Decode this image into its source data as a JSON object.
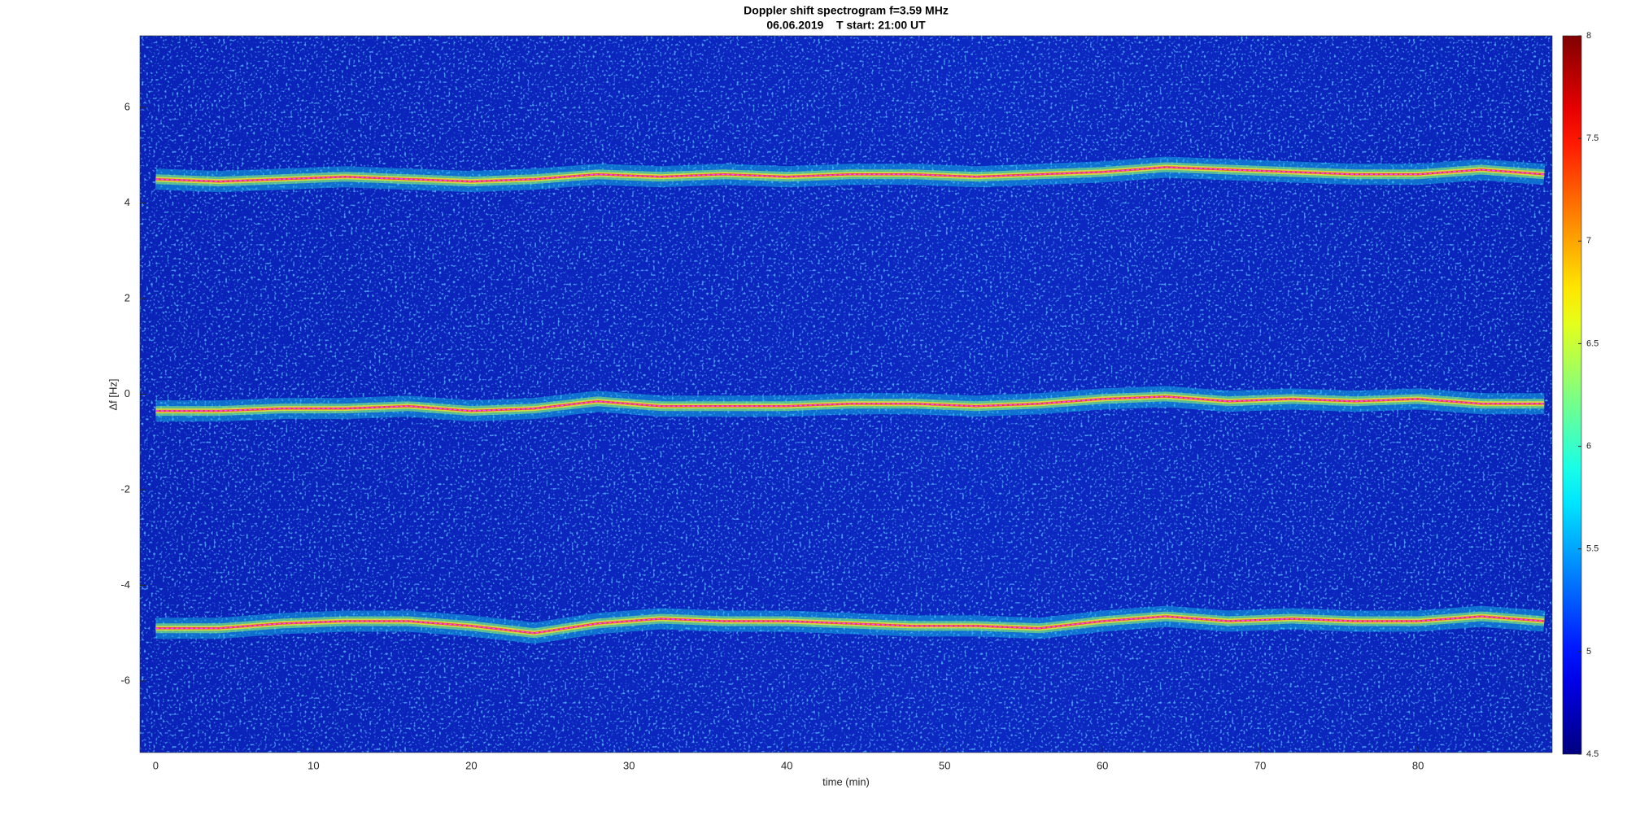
{
  "chart_data": {
    "type": "line",
    "title": "Doppler shift spectrogram f=3.59 MHz",
    "subtitle": "06.06.2019    T start: 21:00 UT",
    "x_label": "time (min)",
    "y_label": "Δf [Hz]",
    "x": [
      0,
      4,
      8,
      12,
      16,
      20,
      24,
      28,
      32,
      36,
      40,
      44,
      48,
      52,
      56,
      60,
      64,
      68,
      72,
      76,
      80,
      84,
      88
    ],
    "series": [
      {
        "color": "#ff44ff",
        "values": [
          4.5,
          4.45,
          4.5,
          4.55,
          4.5,
          4.45,
          4.5,
          4.6,
          4.55,
          4.6,
          4.55,
          4.6,
          4.6,
          4.55,
          4.6,
          4.65,
          4.75,
          4.7,
          4.65,
          4.6,
          4.6,
          4.7,
          4.6
        ]
      },
      {
        "color": "#ff44ff",
        "values": [
          -0.35,
          -0.35,
          -0.3,
          -0.3,
          -0.25,
          -0.35,
          -0.3,
          -0.15,
          -0.25,
          -0.25,
          -0.25,
          -0.2,
          -0.2,
          -0.25,
          -0.2,
          -0.1,
          -0.05,
          -0.15,
          -0.1,
          -0.15,
          -0.1,
          -0.2,
          -0.2
        ]
      },
      {
        "color": "#ff44ff",
        "values": [
          -4.9,
          -4.9,
          -4.8,
          -4.75,
          -4.75,
          -4.85,
          -5.0,
          -4.8,
          -4.7,
          -4.75,
          -4.75,
          -4.8,
          -4.85,
          -4.85,
          -4.9,
          -4.75,
          -4.65,
          -4.75,
          -4.7,
          -4.75,
          -4.75,
          -4.65,
          -4.75
        ]
      }
    ],
    "xlim": [
      -1,
      88.5
    ],
    "xticks": [
      0,
      10,
      20,
      30,
      40,
      50,
      60,
      70,
      80
    ],
    "ylim": [
      -7.5,
      7.5
    ],
    "yticks": [
      -6,
      -4,
      -2,
      0,
      2,
      4,
      6
    ],
    "grid": false,
    "colormap": "jet",
    "clim": [
      4.5,
      8
    ],
    "cticks": [
      4.5,
      5,
      5.5,
      6,
      6.5,
      7,
      7.5,
      8
    ]
  }
}
